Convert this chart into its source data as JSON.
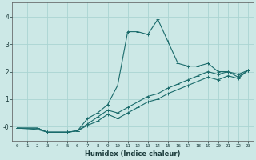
{
  "xlabel": "Humidex (Indice chaleur)",
  "ylabel": "",
  "bg_color": "#cce8e6",
  "grid_color": "#aad4d2",
  "line_color": "#1a6b6b",
  "xlim": [
    -0.5,
    23.5
  ],
  "ylim": [
    -0.5,
    4.5
  ],
  "xticks": [
    0,
    1,
    2,
    3,
    4,
    5,
    6,
    7,
    8,
    9,
    10,
    11,
    12,
    13,
    14,
    15,
    16,
    17,
    18,
    19,
    20,
    21,
    22,
    23
  ],
  "yticks": [
    0,
    1,
    2,
    3,
    4
  ],
  "ytick_labels": [
    "-0",
    "1",
    "2",
    "3",
    "4"
  ],
  "series": [
    {
      "x": [
        0,
        2,
        3,
        4,
        5,
        6,
        7,
        8,
        9,
        10,
        11,
        12,
        13,
        14,
        15,
        16,
        17,
        18,
        19,
        20,
        21,
        22,
        23
      ],
      "y": [
        -0.05,
        -0.1,
        -0.2,
        -0.2,
        -0.2,
        -0.15,
        0.3,
        0.5,
        0.8,
        1.5,
        3.45,
        3.45,
        3.35,
        3.9,
        3.1,
        2.3,
        2.2,
        2.2,
        2.3,
        2.0,
        2.0,
        1.8,
        2.05
      ]
    },
    {
      "x": [
        0,
        2,
        3,
        4,
        5,
        6,
        7,
        8,
        9,
        10,
        11,
        12,
        13,
        14,
        15,
        16,
        17,
        18,
        19,
        20,
        21,
        22,
        23
      ],
      "y": [
        -0.05,
        -0.05,
        -0.2,
        -0.2,
        -0.2,
        -0.15,
        0.1,
        0.35,
        0.6,
        0.5,
        0.7,
        0.9,
        1.1,
        1.2,
        1.4,
        1.55,
        1.7,
        1.85,
        2.0,
        1.9,
        2.0,
        1.9,
        2.05
      ]
    },
    {
      "x": [
        0,
        2,
        3,
        4,
        5,
        6,
        7,
        8,
        9,
        10,
        11,
        12,
        13,
        14,
        15,
        16,
        17,
        18,
        19,
        20,
        21,
        22,
        23
      ],
      "y": [
        -0.05,
        -0.05,
        -0.2,
        -0.2,
        -0.2,
        -0.15,
        0.05,
        0.2,
        0.45,
        0.3,
        0.5,
        0.7,
        0.9,
        1.0,
        1.2,
        1.35,
        1.5,
        1.65,
        1.8,
        1.7,
        1.85,
        1.75,
        2.05
      ]
    }
  ]
}
